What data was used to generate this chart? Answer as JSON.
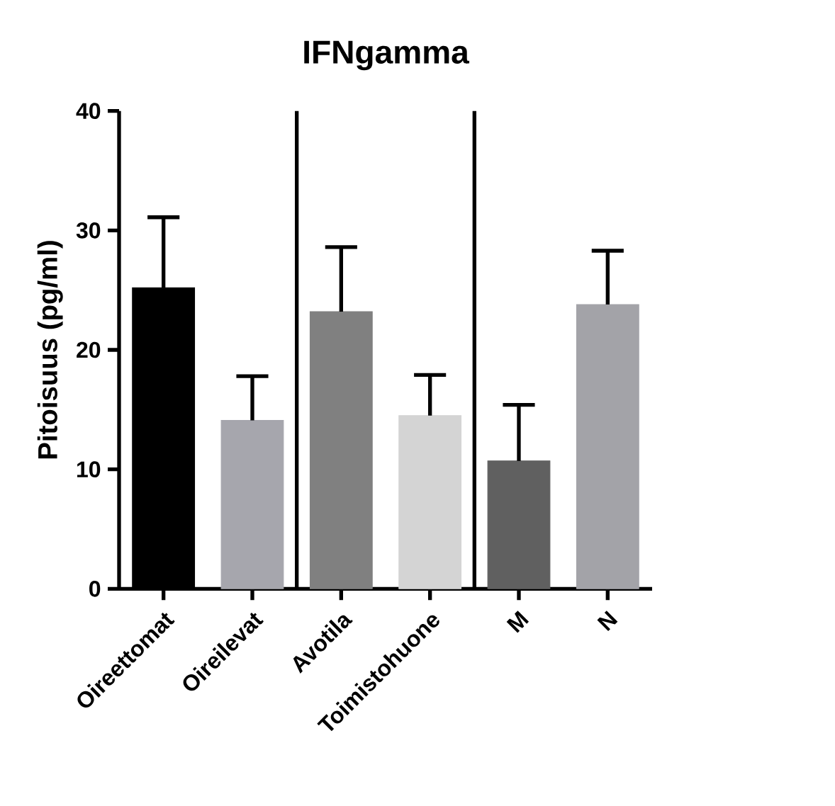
{
  "chart_data": {
    "type": "bar",
    "title": "IFNgamma",
    "ylabel": "Pitoisuus (pg/ml)",
    "categories": [
      "Oireettomat",
      "Oireilevat",
      "Avotila",
      "Toimistohuone",
      "M",
      "N"
    ],
    "values": [
      25.2,
      14.1,
      23.2,
      14.5,
      10.7,
      23.8
    ],
    "colors": [
      "#000000",
      "#a6a6ad",
      "#808080",
      "#d4d4d4",
      "#606060",
      "#a3a3a8"
    ],
    "errors": [
      [
        25.2,
        31.1
      ],
      [
        14.1,
        17.8
      ],
      [
        23.2,
        28.6
      ],
      [
        14.5,
        17.9
      ],
      [
        10.7,
        15.4
      ],
      [
        23.8,
        28.3
      ]
    ],
    "ylim": [
      0,
      40
    ],
    "yticks": [
      0,
      10,
      20,
      30,
      40
    ],
    "grid": false
  }
}
